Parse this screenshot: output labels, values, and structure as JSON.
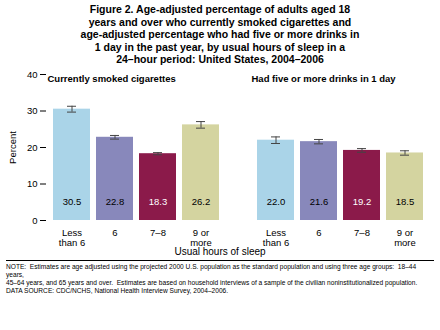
{
  "chart_data": {
    "type": "bar",
    "title": "Figure 2. Age-adjusted percentage of adults aged 18\nyears and over who currently smoked cigarettes and\nage-adjusted percentage who had five or more drinks in\n1 day in the past year, by usual hours of sleep in a\n24–hour period: United States, 2004–2006",
    "xlabel": "Usual hours of sleep",
    "ylabel": "Percent",
    "categories": [
      "Less\nthan 6",
      "6",
      "7–8",
      "9 or\nmore"
    ],
    "colors": [
      "#aad4e8",
      "#8888bb",
      "#8b1a4a",
      "#d4d4a0"
    ],
    "series": [
      {
        "name": "Currently smoked cigarettes",
        "values": [
          30.5,
          22.8,
          18.3,
          26.2
        ],
        "errors": [
          0.8,
          0.5,
          0.3,
          0.9
        ],
        "value_labels": [
          "30.5",
          "22.8",
          "18.3",
          "26.2"
        ]
      },
      {
        "name": "Had five or more drinks in 1 day",
        "values": [
          22.0,
          21.6,
          19.2,
          18.5
        ],
        "errors": [
          0.9,
          0.6,
          0.5,
          0.6
        ],
        "value_labels": [
          "22.0",
          "21.6",
          "19.2",
          "18.5"
        ]
      }
    ],
    "ylim": [
      0,
      40
    ],
    "yticks": [
      0,
      10,
      20,
      30,
      40
    ],
    "grid": false,
    "data_labels": true,
    "annotations": [
      "NOTE:  Estimates are age adjusted using the projected 2000 U.S. population as the standard population and using three age groups:  18–44 years,\n45–64 years, and 65 years and over.  Estimates are based on household interviews of a sample of the civilian noninstitutionalized population.\nDATA SOURCE: CDC/NCHS, National Health Interview Survey, 2004–2006."
    ]
  }
}
